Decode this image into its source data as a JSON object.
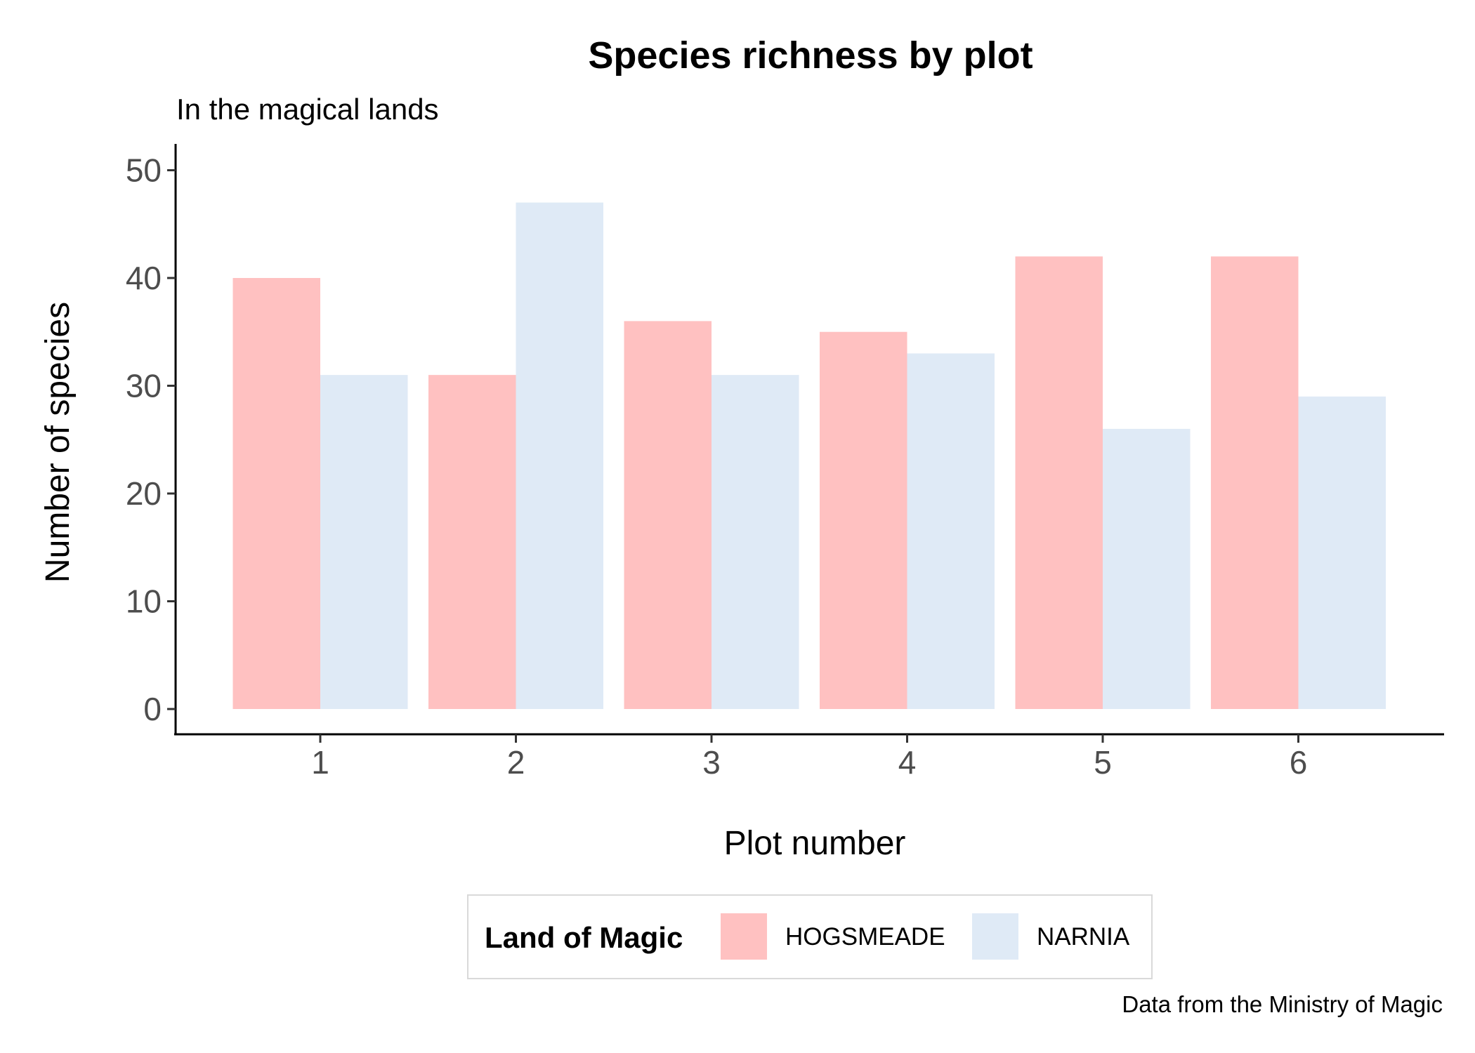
{
  "chart_data": {
    "type": "bar",
    "title": "Species richness by plot",
    "subtitle": "In the magical lands",
    "caption": "Data from the Ministry of Magic",
    "xlabel": "Plot number",
    "ylabel": "Number of species",
    "categories": [
      "1",
      "2",
      "3",
      "4",
      "5",
      "6"
    ],
    "yticks": [
      "0",
      "10",
      "20",
      "30",
      "40",
      "50"
    ],
    "ylim": [
      0,
      52
    ],
    "grid": false,
    "legend": {
      "title": "Land of Magic",
      "position": "bottom"
    },
    "series": [
      {
        "name": "HOGSMEADE",
        "color": "#ffc1c1",
        "values": [
          40,
          31,
          36,
          35,
          42,
          42
        ]
      },
      {
        "name": "NARNIA",
        "color": "#dfeaf6",
        "values": [
          31,
          47,
          31,
          33,
          26,
          29
        ]
      }
    ]
  }
}
